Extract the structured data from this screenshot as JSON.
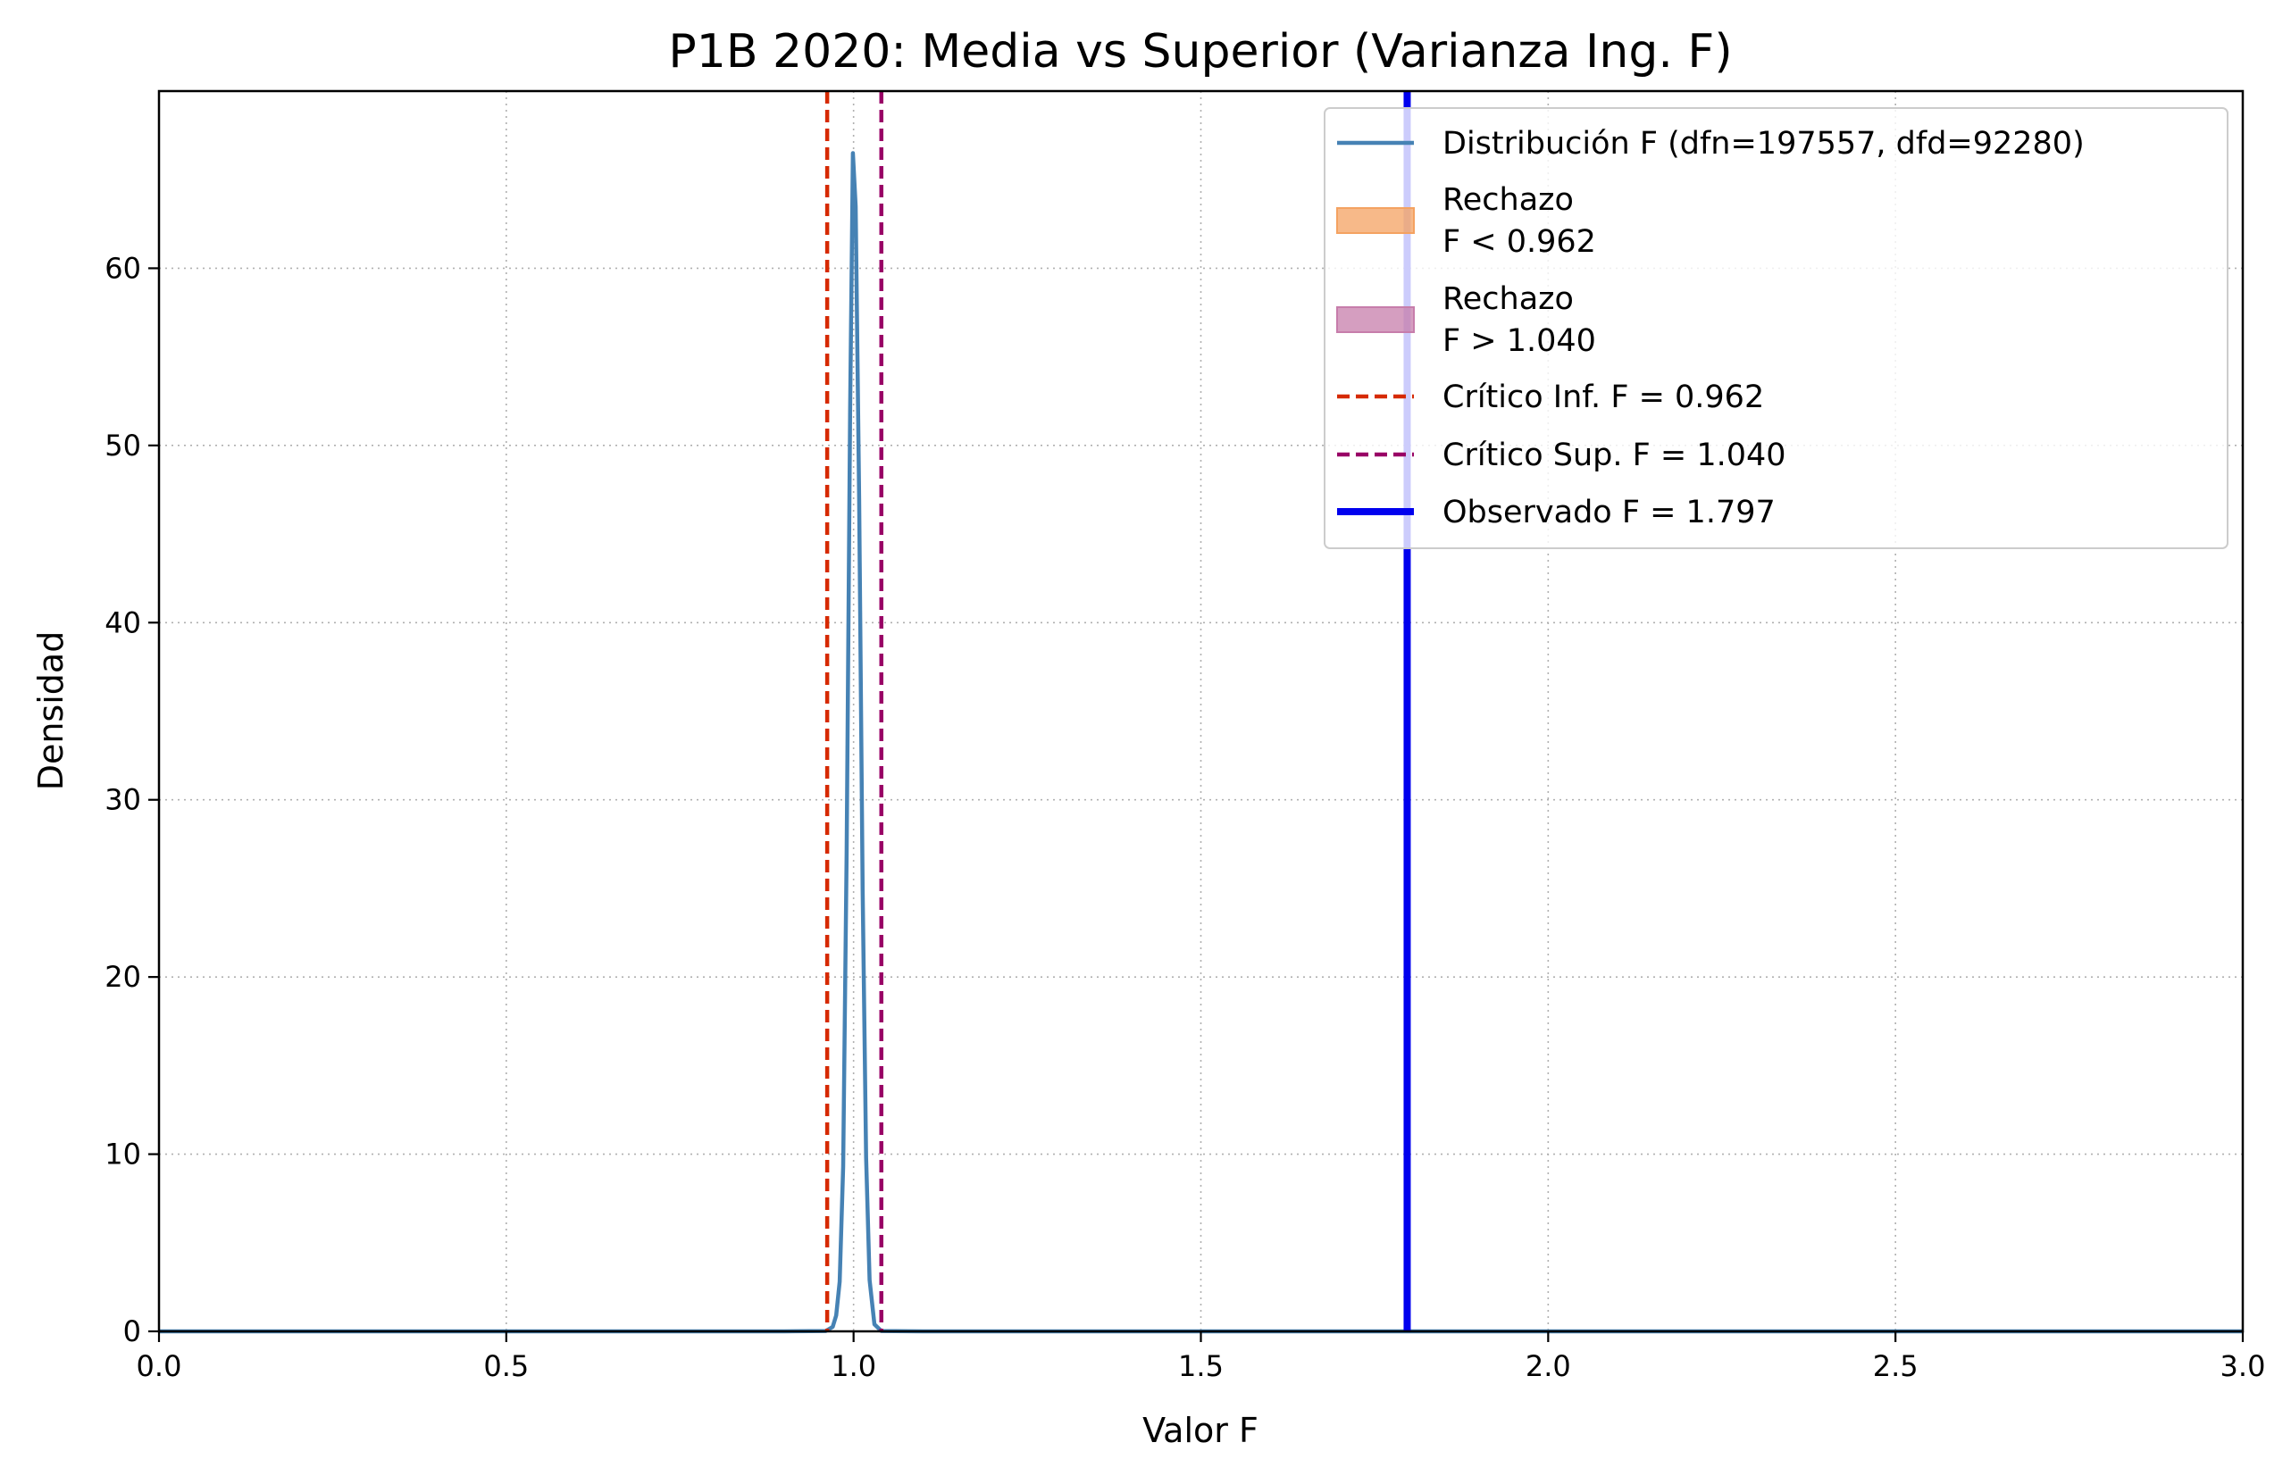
{
  "chart_data": {
    "type": "line",
    "title": "P1B 2020: Media vs Superior (Varianza Ing. F)",
    "xlabel": "Valor F",
    "ylabel": "Densidad",
    "xlim": [
      0,
      3
    ],
    "ylim": [
      0,
      70
    ],
    "x_ticks": [
      "0.0",
      "0.5",
      "1.0",
      "1.5",
      "2.0",
      "2.5",
      "3.0"
    ],
    "y_ticks": [
      "0",
      "10",
      "20",
      "30",
      "40",
      "50",
      "60"
    ],
    "grid": true,
    "legend_position": "upper right",
    "series": [
      {
        "name": "Distribución F (dfn=197557, dfd=92280)",
        "kind": "density-curve",
        "color": "#4682b4",
        "x": [
          0.0,
          0.9,
          0.96,
          0.97,
          0.975,
          0.98,
          0.985,
          0.99,
          0.995,
          0.999,
          1.003,
          1.008,
          1.013,
          1.018,
          1.023,
          1.03,
          1.04,
          1.1,
          3.0
        ],
        "y": [
          0,
          0,
          0.02,
          0.25,
          0.9,
          2.8,
          9.3,
          27.0,
          52.0,
          66.5,
          63.5,
          47.0,
          25.0,
          9.8,
          2.9,
          0.4,
          0.02,
          0,
          0
        ]
      }
    ],
    "rejection_regions": [
      {
        "label": "Rechazo\nF < 0.962",
        "line1": "Rechazo",
        "line2": "F < 0.962",
        "from": 0.0,
        "to": 0.962,
        "color": "#f4a261"
      },
      {
        "label": "Rechazo\nF > 1.040",
        "line1": "Rechazo",
        "line2": "F > 1.040",
        "from": 1.04,
        "to": 3.0,
        "color": "#c77dab"
      }
    ],
    "vlines": [
      {
        "label": "Crítico Inf. F = 0.962",
        "x": 0.962,
        "color": "#d62a00",
        "style": "dashed"
      },
      {
        "label": "Crítico Sup. F = 1.040",
        "x": 1.04,
        "color": "#990066",
        "style": "dashed"
      },
      {
        "label": "Observado F = 1.797",
        "x": 1.797,
        "color": "#0000ee",
        "style": "solid"
      }
    ]
  }
}
